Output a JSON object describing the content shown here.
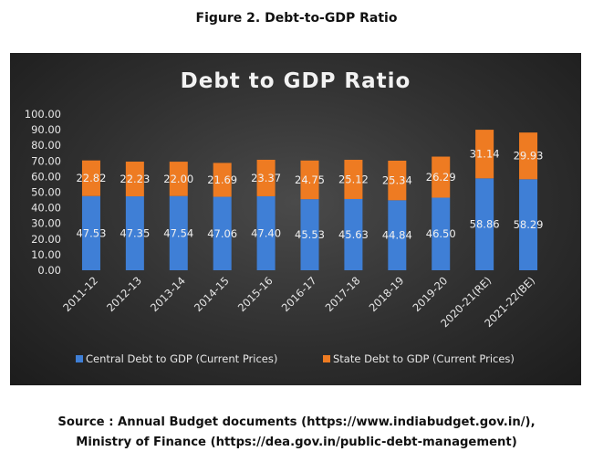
{
  "figure_title": "Figure 2. Debt-to-GDP Ratio",
  "source_line1": "Source : Annual Budget documents (https://www.indiabudget.gov.in/),",
  "source_line2": "Ministry of Finance (https://dea.gov.in/public-debt-management)",
  "colors": {
    "central": "#3f7fd6",
    "state": "#ee7b22",
    "background": "#333333",
    "text": "#e6e6e6"
  },
  "chart_data": {
    "type": "bar",
    "stacked": true,
    "title": "Debt to GDP Ratio",
    "categories": [
      "2011-12",
      "2012-13",
      "2013-14",
      "2014-15",
      "2015-16",
      "2016-17",
      "2017-18",
      "2018-19",
      "2019-20",
      "2020-21(RE)",
      "2021-22(BE)"
    ],
    "series": [
      {
        "name": "Central Debt to GDP (Current Prices)",
        "values": [
          47.53,
          47.35,
          47.54,
          47.06,
          47.4,
          45.53,
          45.63,
          44.84,
          46.5,
          58.86,
          58.29
        ]
      },
      {
        "name": "State Debt to GDP (Current Prices)",
        "values": [
          22.82,
          22.23,
          22.0,
          21.69,
          23.37,
          24.75,
          25.12,
          25.34,
          26.29,
          31.14,
          29.93
        ]
      }
    ],
    "yticks": [
      "0.00",
      "10.00",
      "20.00",
      "30.00",
      "40.00",
      "50.00",
      "60.00",
      "70.00",
      "80.00",
      "90.00",
      "100.00"
    ],
    "ylim": [
      0,
      100
    ],
    "data_labels": [
      [
        "47.53",
        "47.35",
        "47.54",
        "47.06",
        "47.40",
        "45.53",
        "45.63",
        "44.84",
        "46.50",
        "58.86",
        "58.29"
      ],
      [
        "22.82",
        "22.23",
        "22.00",
        "21.69",
        "23.37",
        "24.75",
        "25.12",
        "25.34",
        "26.29",
        "31.14",
        "29.93"
      ]
    ],
    "legend_position": "bottom",
    "grid": false
  }
}
